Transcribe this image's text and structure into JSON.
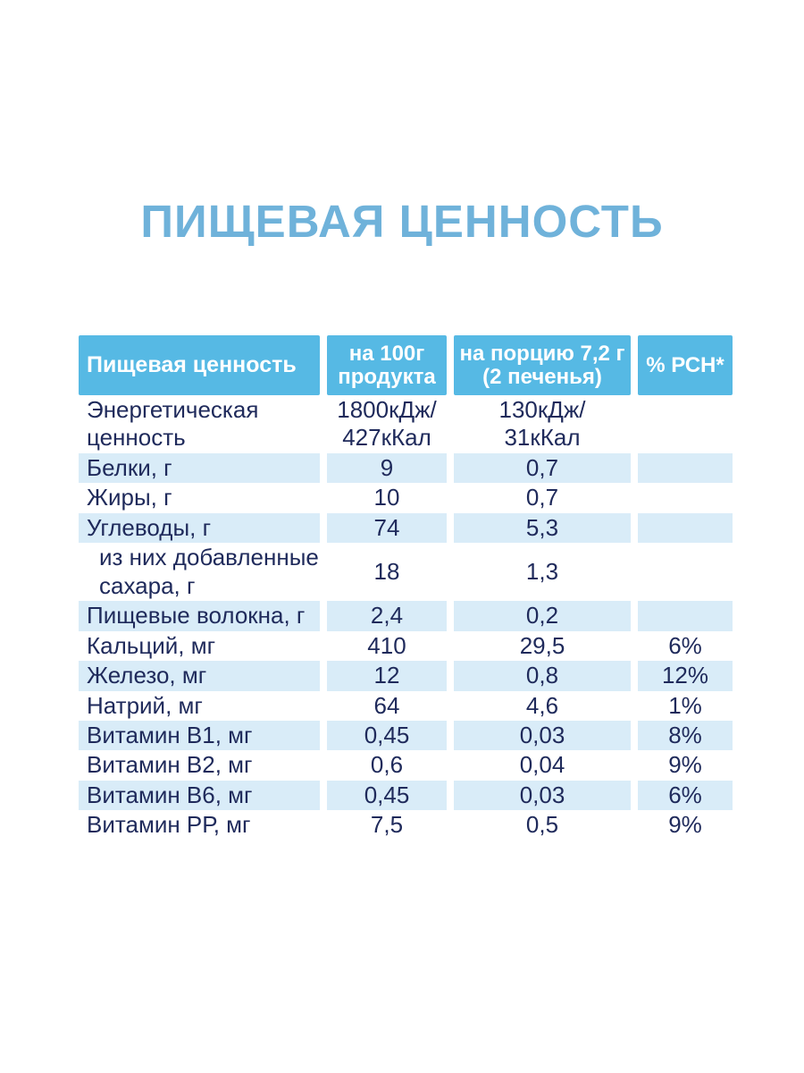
{
  "page": {
    "title": "ПИЩЕВАЯ ЦЕННОСТЬ"
  },
  "colors": {
    "title_text": "#6fb2da",
    "header_bg": "#56b9e4",
    "header_text": "#ffffff",
    "stripe_bg": "#d9ecf8",
    "body_text": "#1f2a5b",
    "background_wash": "#dde9f4"
  },
  "table": {
    "headers": [
      "Пищевая ценность",
      "на 100г\nпродукта",
      "на порцию 7,2 г\n(2 печенья)",
      "% РСН*"
    ],
    "rows": [
      {
        "label": "Энергетическая\nценность",
        "per100": "1800кДж/\n427кКал",
        "per_portion": "130кДж/\n31кКал",
        "rsn": "",
        "indent": false
      },
      {
        "label": "Белки, г",
        "per100": "9",
        "per_portion": "0,7",
        "rsn": "",
        "indent": false
      },
      {
        "label": "Жиры, г",
        "per100": "10",
        "per_portion": "0,7",
        "rsn": "",
        "indent": false
      },
      {
        "label": "Углеводы, г",
        "per100": "74",
        "per_portion": "5,3",
        "rsn": "",
        "indent": false
      },
      {
        "label": "из них добавленные\nсахара, г",
        "per100": "18",
        "per_portion": "1,3",
        "rsn": "",
        "indent": true
      },
      {
        "label": "Пищевые волокна, г",
        "per100": "2,4",
        "per_portion": "0,2",
        "rsn": "",
        "indent": false
      },
      {
        "label": "Кальций, мг",
        "per100": "410",
        "per_portion": "29,5",
        "rsn": "6%",
        "indent": false
      },
      {
        "label": "Железо, мг",
        "per100": "12",
        "per_portion": "0,8",
        "rsn": "12%",
        "indent": false
      },
      {
        "label": "Натрий, мг",
        "per100": "64",
        "per_portion": "4,6",
        "rsn": "1%",
        "indent": false
      },
      {
        "label": "Витамин В1, мг",
        "per100": "0,45",
        "per_portion": "0,03",
        "rsn": "8%",
        "indent": false
      },
      {
        "label": "Витамин В2, мг",
        "per100": "0,6",
        "per_portion": "0,04",
        "rsn": "9%",
        "indent": false
      },
      {
        "label": "Витамин В6, мг",
        "per100": "0,45",
        "per_portion": "0,03",
        "rsn": "6%",
        "indent": false
      },
      {
        "label": "Витамин РР, мг",
        "per100": "7,5",
        "per_portion": "0,5",
        "rsn": "9%",
        "indent": false
      }
    ]
  }
}
